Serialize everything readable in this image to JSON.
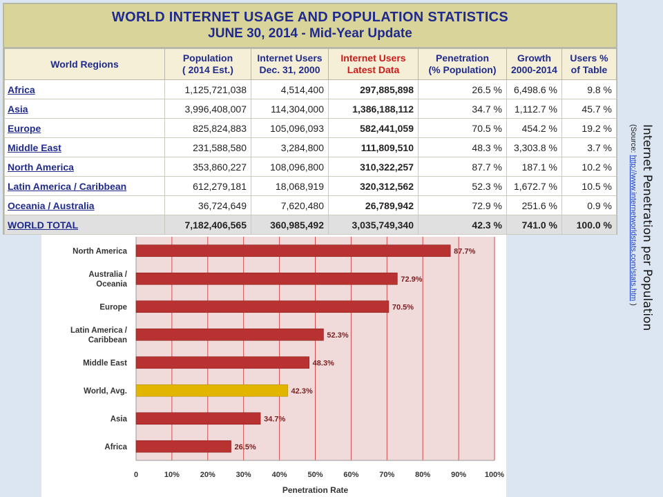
{
  "table": {
    "title_line1": "WORLD INTERNET USAGE AND POPULATION STATISTICS",
    "title_line2": "JUNE 30, 2014 - Mid-Year Update",
    "headers": [
      {
        "l1": "World Regions",
        "l2": ""
      },
      {
        "l1": "Population",
        "l2": "( 2014 Est.)"
      },
      {
        "l1": "Internet Users",
        "l2": "Dec. 31, 2000"
      },
      {
        "l1": "Internet Users",
        "l2": "Latest Data"
      },
      {
        "l1": "Penetration",
        "l2": "(% Population)"
      },
      {
        "l1": "Growth",
        "l2": "2000-2014"
      },
      {
        "l1": "Users %",
        "l2": "of Table"
      }
    ],
    "rows": [
      [
        "Africa",
        "1,125,721,038",
        "4,514,400",
        "297,885,898",
        "26.5 %",
        "6,498.6 %",
        "9.8 %"
      ],
      [
        "Asia",
        "3,996,408,007",
        "114,304,000",
        "1,386,188,112",
        "34.7 %",
        "1,112.7 %",
        "45.7 %"
      ],
      [
        "Europe",
        "825,824,883",
        "105,096,093",
        "582,441,059",
        "70.5 %",
        "454.2 %",
        "19.2 %"
      ],
      [
        "Middle East",
        "231,588,580",
        "3,284,800",
        "111,809,510",
        "48.3 %",
        "3,303.8 %",
        "3.7 %"
      ],
      [
        "North America",
        "353,860,227",
        "108,096,800",
        "310,322,257",
        "87.7 %",
        "187.1 %",
        "10.2 %"
      ],
      [
        "Latin America / Caribbean",
        "612,279,181",
        "18,068,919",
        "320,312,562",
        "52.3 %",
        "1,672.7 %",
        "10.5 %"
      ],
      [
        "Oceania / Australia",
        "36,724,649",
        "7,620,480",
        "26,789,942",
        "72.9 %",
        "251.6 %",
        "0.9 %"
      ]
    ],
    "total": [
      "WORLD TOTAL",
      "7,182,406,565",
      "360,985,492",
      "3,035,749,340",
      "42.3 %",
      "741.0 %",
      "100.0 %"
    ]
  },
  "caption": {
    "title": "Internet Penetration per Population",
    "source_prefix": "(Source:",
    "source_link": "http://www.internetworldstats.com/stats.htm",
    "source_suffix": ")"
  },
  "chart_data": {
    "type": "bar",
    "orientation": "horizontal",
    "categories": [
      [
        "North America"
      ],
      [
        "Australia /",
        "Oceania"
      ],
      [
        "Europe"
      ],
      [
        "Latin America /",
        "Caribbean"
      ],
      [
        "Middle East"
      ],
      [
        "World, Avg."
      ],
      [
        "Asia"
      ],
      [
        "Africa"
      ]
    ],
    "values": [
      87.7,
      72.9,
      70.5,
      52.3,
      48.3,
      42.3,
      34.7,
      26.5
    ],
    "value_labels": [
      "87.7%",
      "72.9%",
      "70.5%",
      "52.3%",
      "48.3%",
      "42.3%",
      "34.7%",
      "26.5%"
    ],
    "highlight_index": 5,
    "xlabel": "Penetration Rate",
    "xlim": [
      0,
      100
    ],
    "xticks": [
      0,
      10,
      20,
      30,
      40,
      50,
      60,
      70,
      80,
      90,
      100
    ],
    "xtick_labels": [
      "0",
      "10%",
      "20%",
      "30%",
      "40%",
      "50%",
      "60%",
      "70%",
      "80%",
      "90%",
      "100%"
    ],
    "grid": "vertical",
    "colors": {
      "bar": "#b83232",
      "highlight": "#e2b600",
      "plot_bg": "#f0dada",
      "grid": "#d24a4a",
      "label": "#7a1f1f"
    }
  }
}
